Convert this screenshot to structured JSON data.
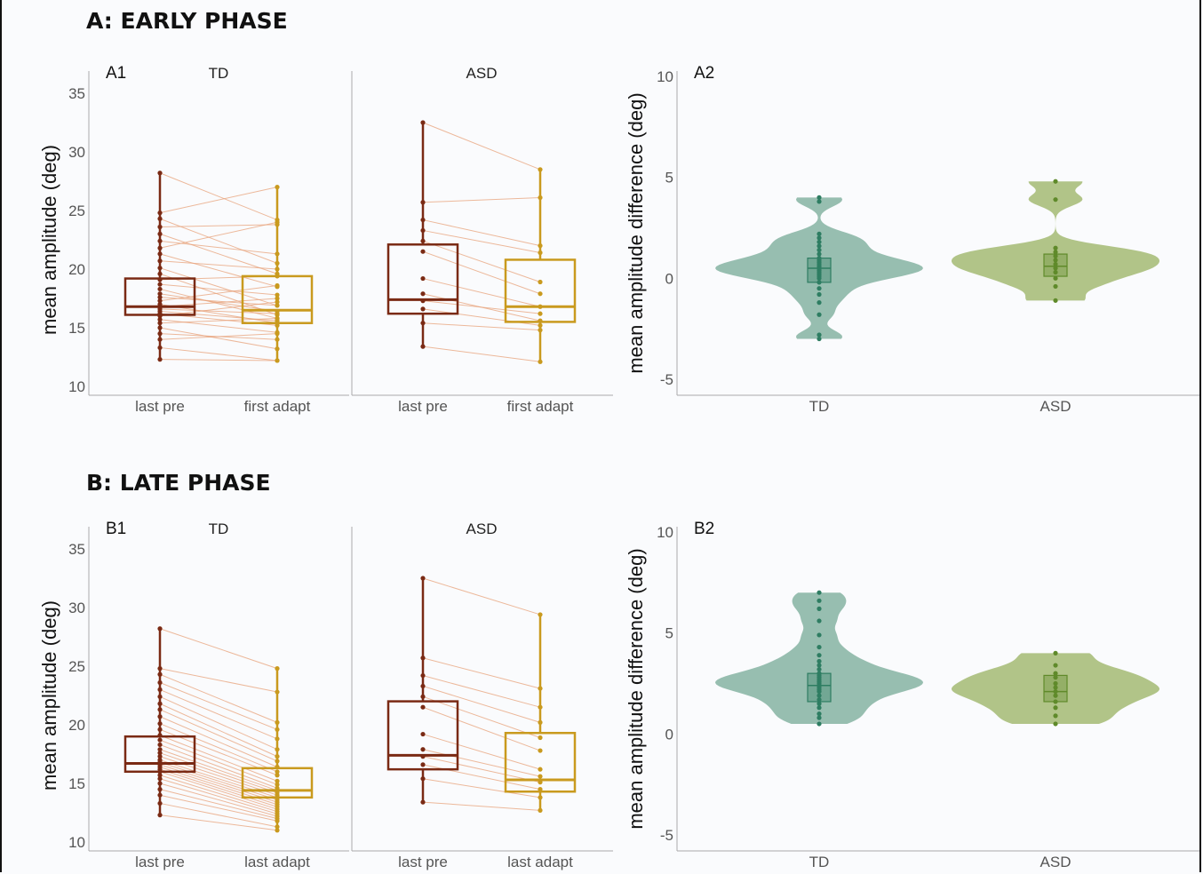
{
  "colors": {
    "pre": "#7a2a14",
    "post": "#c99a1e",
    "line": "#e8a27a",
    "td": "#7eaf9c",
    "td_dark": "#2e7d62",
    "asd": "#9fb76a",
    "asd_dark": "#5f8a2a",
    "axis": "#aaaaaa"
  },
  "sections": [
    {
      "title": "A: EARLY PHASE"
    },
    {
      "title": "B: LATE PHASE"
    }
  ],
  "chart_data": [
    {
      "type": "box-paired",
      "panel_label": "A1",
      "ylabel": "mean amplitude (deg)",
      "ylim": [
        10,
        35
      ],
      "yticks": [
        "10",
        "15",
        "20",
        "25",
        "30",
        "35"
      ],
      "facets": [
        {
          "name": "TD",
          "categories": [
            "last pre",
            "first adapt"
          ],
          "pre": [
            28.2,
            24.8,
            24.3,
            23.6,
            23.0,
            22.4,
            21.8,
            21.3,
            20.7,
            20.1,
            19.6,
            19.1,
            18.7,
            18.3,
            17.9,
            17.6,
            17.3,
            17.0,
            16.8,
            16.6,
            16.4,
            16.2,
            16.0,
            15.7,
            15.4,
            15.0,
            14.5,
            14.0,
            13.3,
            12.3
          ],
          "post": [
            24.2,
            27.0,
            20.5,
            23.8,
            19.6,
            21.3,
            24.0,
            18.5,
            20.0,
            16.9,
            16.1,
            19.4,
            17.8,
            15.8,
            16.4,
            16.9,
            18.6,
            15.4,
            17.5,
            16.2,
            15.6,
            15.2,
            17.2,
            14.6,
            15.8,
            13.2,
            14.0,
            14.5,
            12.2,
            12.2
          ],
          "box": {
            "pre": {
              "q1": 16.1,
              "median": 16.8,
              "q3": 19.2,
              "min": 12.3,
              "max": 28.2
            },
            "post": {
              "q1": 15.4,
              "median": 16.5,
              "q3": 19.4,
              "min": 12.2,
              "max": 27.0
            }
          }
        },
        {
          "name": "ASD",
          "categories": [
            "last pre",
            "first adapt"
          ],
          "pre": [
            32.5,
            25.7,
            24.2,
            23.3,
            22.4,
            21.5,
            19.2,
            17.9,
            17.3,
            16.6,
            15.4,
            13.4
          ],
          "post": [
            28.5,
            26.1,
            22.0,
            21.4,
            18.9,
            17.9,
            16.8,
            15.6,
            16.2,
            15.2,
            14.8,
            12.1
          ],
          "box": {
            "pre": {
              "q1": 16.2,
              "median": 17.4,
              "q3": 22.1,
              "min": 13.4,
              "max": 32.5
            },
            "post": {
              "q1": 15.5,
              "median": 16.8,
              "q3": 20.8,
              "min": 12.1,
              "max": 28.5
            }
          }
        }
      ]
    },
    {
      "type": "violin",
      "panel_label": "A2",
      "ylabel": "mean amplitude difference (deg)",
      "ylim": [
        -5,
        10
      ],
      "yticks": [
        "-5",
        "0",
        "5",
        "10"
      ],
      "categories": [
        "TD",
        "ASD"
      ],
      "groups": [
        {
          "name": "TD",
          "values": [
            -3.0,
            -2.8,
            -1.8,
            -1.2,
            -0.8,
            -0.5,
            -0.2,
            0.0,
            0.1,
            0.2,
            0.3,
            0.4,
            0.5,
            0.5,
            0.6,
            0.7,
            0.8,
            0.9,
            1.0,
            1.2,
            1.4,
            1.6,
            1.8,
            2.0,
            2.2,
            3.8,
            4.0
          ],
          "box": {
            "q1": -0.2,
            "median": 0.5,
            "q3": 1.0
          }
        },
        {
          "name": "ASD",
          "values": [
            -1.1,
            -0.4,
            0.0,
            0.3,
            0.5,
            0.7,
            0.9,
            1.1,
            1.3,
            1.5,
            3.9,
            4.8
          ],
          "box": {
            "q1": 0.1,
            "median": 0.6,
            "q3": 1.2
          }
        }
      ]
    },
    {
      "type": "box-paired",
      "panel_label": "B1",
      "ylabel": "mean amplitude (deg)",
      "ylim": [
        10,
        35
      ],
      "yticks": [
        "10",
        "15",
        "20",
        "25",
        "30",
        "35"
      ],
      "facets": [
        {
          "name": "TD",
          "categories": [
            "last pre",
            "last adapt"
          ],
          "pre": [
            28.2,
            24.8,
            24.3,
            23.6,
            23.0,
            22.4,
            21.8,
            21.3,
            20.7,
            20.1,
            19.6,
            19.1,
            18.7,
            18.3,
            17.9,
            17.6,
            17.3,
            17.0,
            16.8,
            16.6,
            16.4,
            16.2,
            16.0,
            15.7,
            15.4,
            15.0,
            14.5,
            14.0,
            13.3,
            12.3
          ],
          "post": [
            24.8,
            22.8,
            20.2,
            19.6,
            18.8,
            17.9,
            17.3,
            16.9,
            16.4,
            16.0,
            15.7,
            15.2,
            14.9,
            14.6,
            14.4,
            14.2,
            14.0,
            13.8,
            13.6,
            13.4,
            13.2,
            13.0,
            12.8,
            12.6,
            12.4,
            12.2,
            12.0,
            11.8,
            11.3,
            11.0
          ],
          "box": {
            "pre": {
              "q1": 16.0,
              "median": 16.7,
              "q3": 19.0,
              "min": 12.3,
              "max": 28.2
            },
            "post": {
              "q1": 13.8,
              "median": 14.4,
              "q3": 16.3,
              "min": 11.0,
              "max": 24.8
            }
          }
        },
        {
          "name": "ASD",
          "categories": [
            "last pre",
            "last adapt"
          ],
          "pre": [
            32.5,
            25.7,
            24.2,
            23.3,
            22.4,
            21.5,
            19.2,
            17.9,
            17.3,
            16.6,
            15.4,
            13.4
          ],
          "post": [
            29.4,
            23.1,
            21.5,
            20.2,
            18.9,
            17.8,
            16.2,
            15.6,
            15.1,
            14.5,
            13.8,
            12.7
          ],
          "box": {
            "pre": {
              "q1": 16.2,
              "median": 17.4,
              "q3": 22.0,
              "min": 13.4,
              "max": 32.5
            },
            "post": {
              "q1": 14.3,
              "median": 15.3,
              "q3": 19.3,
              "min": 12.7,
              "max": 29.4
            }
          }
        }
      ]
    },
    {
      "type": "violin",
      "panel_label": "B2",
      "ylabel": "mean amplitude difference (deg)",
      "ylim": [
        -5,
        10
      ],
      "yticks": [
        "-5",
        "0",
        "5",
        "10"
      ],
      "categories": [
        "TD",
        "ASD"
      ],
      "groups": [
        {
          "name": "TD",
          "values": [
            0.5,
            0.8,
            1.0,
            1.3,
            1.5,
            1.7,
            1.9,
            2.1,
            2.2,
            2.3,
            2.4,
            2.5,
            2.6,
            2.7,
            2.8,
            2.9,
            3.0,
            3.2,
            3.4,
            3.6,
            3.9,
            4.3,
            4.9,
            5.6,
            6.2,
            6.6,
            7.0
          ],
          "box": {
            "q1": 1.6,
            "median": 2.4,
            "q3": 3.0
          }
        },
        {
          "name": "ASD",
          "values": [
            0.5,
            0.9,
            1.3,
            1.6,
            1.9,
            2.1,
            2.3,
            2.5,
            2.8,
            3.0,
            3.4,
            4.0
          ],
          "box": {
            "q1": 1.6,
            "median": 2.1,
            "q3": 2.9
          }
        }
      ]
    }
  ]
}
